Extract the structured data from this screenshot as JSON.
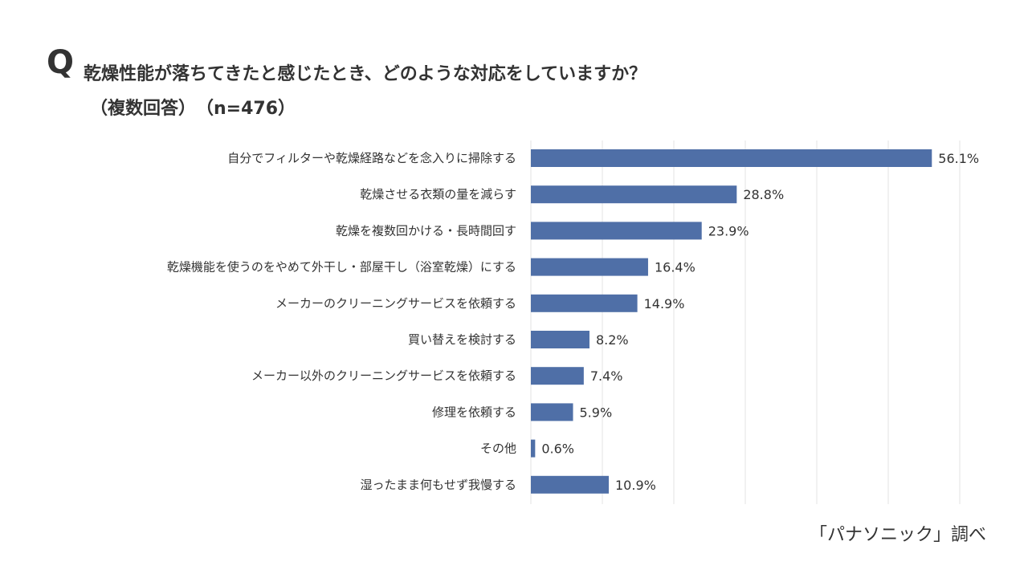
{
  "header": {
    "q_mark": "Q",
    "question": "乾燥性能が落ちてきたと感じたとき、どのような対応をしていますか？",
    "subtitle": "（複数回答）　（n=476）"
  },
  "source": "「パナソニック」調べ",
  "colors": {
    "bar": "#4f6fa7",
    "grid": "#e3e3e3",
    "text": "#333333"
  },
  "chart_data": {
    "type": "bar",
    "orientation": "horizontal",
    "title": "乾燥性能が落ちてきたと感じたとき、どのような対応をしていますか？",
    "categories": [
      "自分でフィルターや乾燥経路などを念入りに掃除する",
      "乾燥させる衣類の量を減らす",
      "乾燥を複数回かける・長時間回す",
      "乾燥機能を使うのをやめて外干し・部屋干し（浴室乾燥）にする",
      "メーカーのクリーニングサービスを依頼する",
      "買い替えを検討する",
      "メーカー以外のクリーニングサービスを依頼する",
      "修理を依頼する",
      "その他",
      "湿ったまま何もせず我慢する"
    ],
    "values": [
      56.1,
      28.8,
      23.9,
      16.4,
      14.9,
      8.2,
      7.4,
      5.9,
      0.6,
      10.9
    ],
    "value_labels": [
      "56.1%",
      "28.8%",
      "23.9%",
      "16.4%",
      "14.9%",
      "8.2%",
      "7.4%",
      "5.9%",
      "0.6%",
      "10.9%"
    ],
    "xlim": [
      0,
      60
    ],
    "grid": true,
    "legend": "none"
  }
}
